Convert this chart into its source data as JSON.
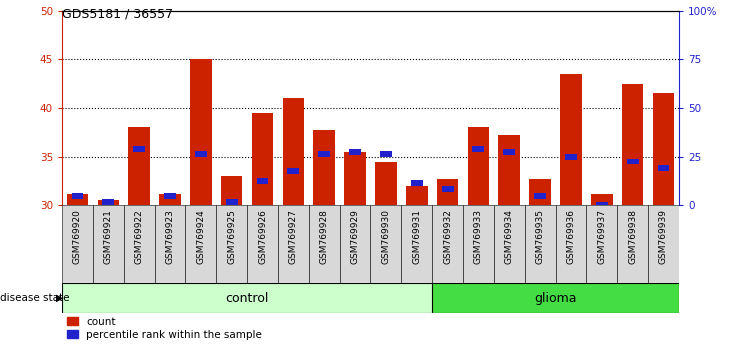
{
  "title": "GDS5181 / 36557",
  "samples": [
    "GSM769920",
    "GSM769921",
    "GSM769922",
    "GSM769923",
    "GSM769924",
    "GSM769925",
    "GSM769926",
    "GSM769927",
    "GSM769928",
    "GSM769929",
    "GSM769930",
    "GSM769931",
    "GSM769932",
    "GSM769933",
    "GSM769934",
    "GSM769935",
    "GSM769936",
    "GSM769937",
    "GSM769938",
    "GSM769939"
  ],
  "count_values": [
    31.2,
    30.5,
    38.0,
    31.2,
    45.0,
    33.0,
    39.5,
    41.0,
    37.7,
    35.5,
    34.5,
    32.0,
    32.7,
    38.0,
    37.2,
    32.7,
    43.5,
    31.2,
    42.5,
    41.5
  ],
  "percentile_values": [
    31.0,
    30.3,
    35.8,
    31.0,
    35.3,
    30.3,
    32.5,
    33.5,
    35.3,
    35.5,
    35.3,
    32.3,
    31.7,
    35.8,
    35.5,
    31.0,
    35.0,
    30.0,
    34.5,
    33.8
  ],
  "control_count": 12,
  "ylim_left": [
    30,
    50
  ],
  "ylim_right": [
    0,
    100
  ],
  "yticks_left": [
    30,
    35,
    40,
    45,
    50
  ],
  "yticks_right": [
    0,
    25,
    50,
    75,
    100
  ],
  "ytick_labels_right": [
    "0",
    "25",
    "50",
    "75",
    "100%"
  ],
  "bar_color": "#cc2200",
  "percentile_color": "#2222cc",
  "control_bg_light": "#ccffcc",
  "control_bg": "#aaffaa",
  "glioma_bg": "#44dd44",
  "label_color_red": "#cc2200",
  "label_color_blue": "#2222cc",
  "grid_color": "#000000",
  "legend_count": "count",
  "legend_percentile": "percentile rank within the sample",
  "disease_state_label": "disease state",
  "control_label": "control",
  "glioma_label": "glioma",
  "cell_bg": "#d8d8d8"
}
